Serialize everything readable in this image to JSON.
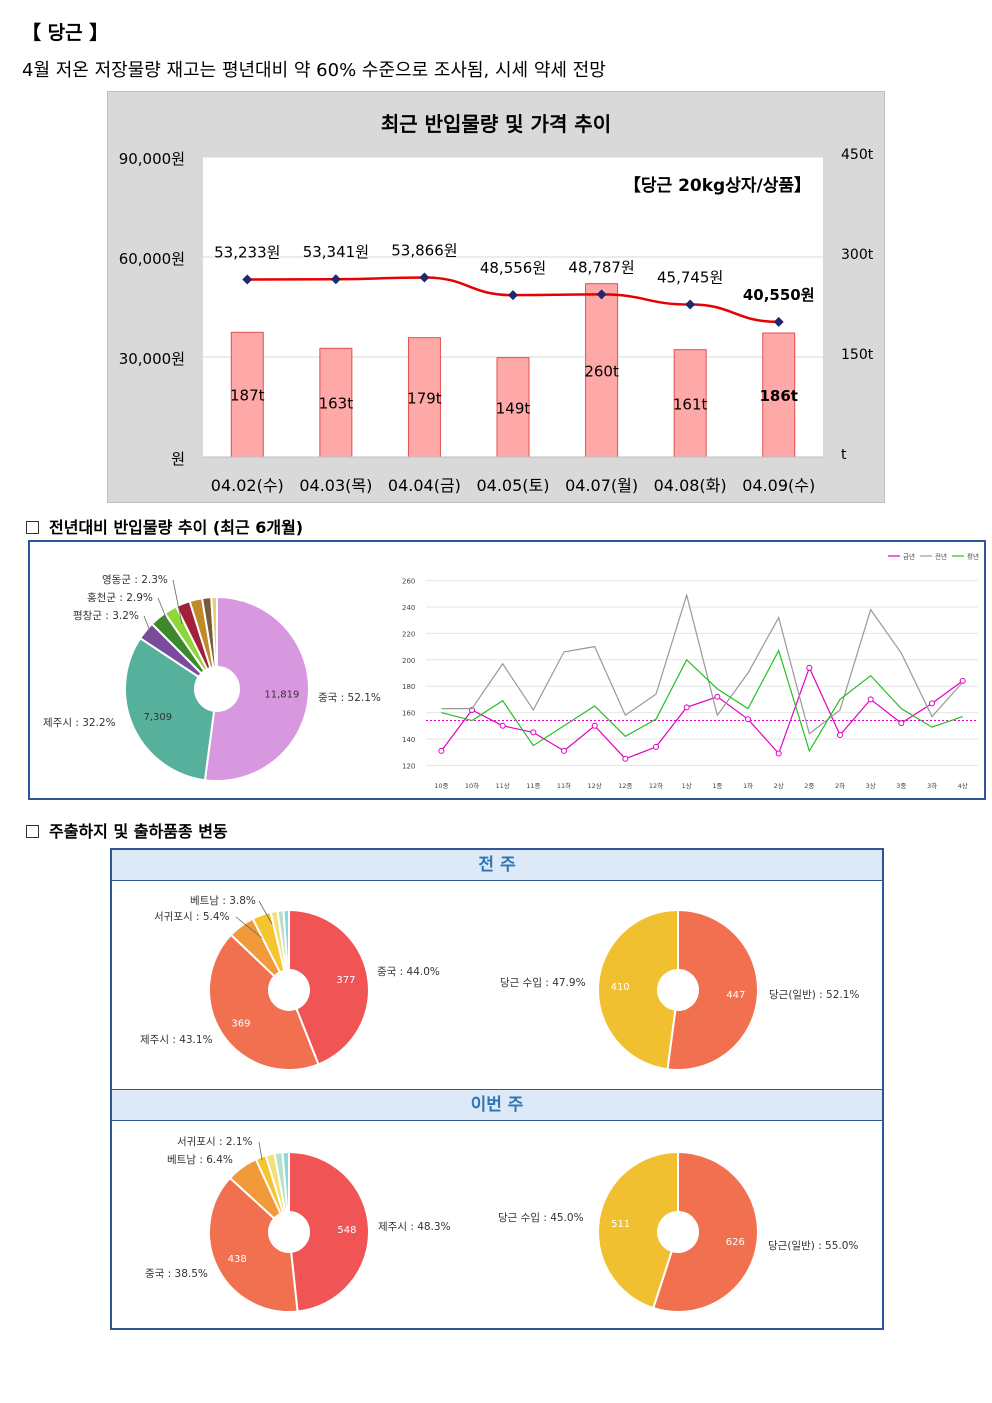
{
  "header": {
    "title": "【 당근 】",
    "subtitle": "4월 저온 저장물량 재고는 평년대비 약 60% 수준으로 조사됨, 시세 약세 전망"
  },
  "chart_data": [
    {
      "type": "bar",
      "title": "최근 반입물량 및 가격 추이",
      "annotation": "【당근 20kg상자/상품】",
      "categories": [
        "04.02(수)",
        "04.03(목)",
        "04.04(금)",
        "04.05(토)",
        "04.07(월)",
        "04.08(화)",
        "04.09(수)"
      ],
      "series": [
        {
          "name": "반입물량",
          "kind": "bar",
          "axis": "right",
          "color": "#ffa8a8",
          "values": [
            187,
            163,
            179,
            149,
            260,
            161,
            186
          ],
          "labels": [
            "187t",
            "163t",
            "179t",
            "149t",
            "260t",
            "161t",
            "186t"
          ]
        },
        {
          "name": "가격",
          "kind": "line",
          "axis": "left",
          "color": "#e60000",
          "values": [
            53233,
            53341,
            53866,
            48556,
            48787,
            45745,
            40550
          ],
          "labels": [
            "53,233원",
            "53,341원",
            "53,866원",
            "48,556원",
            "48,787원",
            "45,745원",
            "40,550원"
          ]
        }
      ],
      "ylim_left": [
        0,
        90000
      ],
      "ylim_right": [
        0,
        450
      ],
      "left_ticks": [
        "원",
        "30,000원",
        "60,000원",
        "90,000원"
      ],
      "right_ticks": [
        "t",
        "150t",
        "300t",
        "450t"
      ]
    },
    {
      "type": "pie",
      "slices": [
        {
          "label": "중국 : 52.1%",
          "value": 52.1,
          "count": "11,819",
          "color": "#d898e0"
        },
        {
          "label": "제주시 : 32.2%",
          "value": 32.2,
          "count": "7,309",
          "color": "#56b09c"
        },
        {
          "label": "평창군 : 3.2%",
          "value": 3.2,
          "color": "#7a4a9c"
        },
        {
          "label": "홍천군 : 2.9%",
          "value": 2.9,
          "color": "#3c8a2c"
        },
        {
          "label": "영동군 : 2.3%",
          "value": 2.3,
          "color": "#8fd63a"
        },
        {
          "label": "",
          "value": 2.5,
          "color": "#a3203a"
        },
        {
          "label": "",
          "value": 2.2,
          "color": "#c08a28"
        },
        {
          "label": "",
          "value": 1.6,
          "color": "#7a5a3a"
        },
        {
          "label": "",
          "value": 1.0,
          "color": "#e8d070"
        }
      ]
    },
    {
      "type": "line",
      "legend": [
        "금년",
        "전년",
        "평년"
      ],
      "x": [
        "10중",
        "10하",
        "11상",
        "11중",
        "11하",
        "12상",
        "12중",
        "12하",
        "1상",
        "1중",
        "1하",
        "2상",
        "2중",
        "2하",
        "3상",
        "3중",
        "3하",
        "4상"
      ],
      "yticks": [
        "120",
        "140",
        "160",
        "180",
        "200",
        "220",
        "240",
        "260"
      ],
      "ylim": [
        115,
        265
      ],
      "series": [
        {
          "name": "금년",
          "color": "#e000c0",
          "values": [
            131,
            162,
            150,
            145,
            131,
            150,
            125,
            134,
            164,
            172,
            155,
            129,
            194,
            143,
            170,
            152,
            167,
            184
          ]
        },
        {
          "name": "전년",
          "color": "#999999",
          "values": [
            163,
            163,
            197,
            162,
            206,
            210,
            158,
            174,
            249,
            158,
            190,
            232,
            144,
            162,
            238,
            205,
            157,
            183
          ]
        },
        {
          "name": "평년",
          "color": "#22c022",
          "values": [
            160,
            154,
            169,
            135,
            150,
            165,
            142,
            155,
            200,
            178,
            163,
            207,
            131,
            170,
            188,
            163,
            149,
            157
          ]
        }
      ],
      "reference": 154
    },
    {
      "type": "pie",
      "slices": [
        {
          "label": "중국 : 44.0%",
          "value": 44.0,
          "count": "377",
          "color": "#f05454"
        },
        {
          "label": "제주시 : 43.1%",
          "value": 43.1,
          "count": "369",
          "color": "#f07050"
        },
        {
          "label": "서귀포시 : 5.4%",
          "value": 5.4,
          "color": "#f09a3a"
        },
        {
          "label": "베트남 : 3.8%",
          "value": 3.8,
          "color": "#f6c430"
        },
        {
          "label": "",
          "value": 1.4,
          "color": "#f3e07a"
        },
        {
          "label": "",
          "value": 1.2,
          "color": "#b8e0c8"
        },
        {
          "label": "",
          "value": 1.1,
          "color": "#8ed6dc"
        }
      ]
    },
    {
      "type": "pie",
      "slices": [
        {
          "label": "당근(일반) : 52.1%",
          "value": 52.1,
          "count": "447",
          "color": "#f07050"
        },
        {
          "label": "당근 수입 : 47.9%",
          "value": 47.9,
          "count": "410",
          "color": "#f0c030"
        }
      ]
    },
    {
      "type": "pie",
      "slices": [
        {
          "label": "제주시 : 48.3%",
          "value": 48.3,
          "count": "548",
          "color": "#f05454"
        },
        {
          "label": "중국 : 38.5%",
          "value": 38.5,
          "count": "438",
          "color": "#f07050"
        },
        {
          "label": "베트남 : 6.4%",
          "value": 6.4,
          "color": "#f09a3a"
        },
        {
          "label": "서귀포시 : 2.1%",
          "value": 2.1,
          "color": "#f6c430"
        },
        {
          "label": "",
          "value": 1.8,
          "color": "#f3e07a"
        },
        {
          "label": "",
          "value": 1.6,
          "color": "#b8e0c8"
        },
        {
          "label": "",
          "value": 1.3,
          "color": "#8ed6dc"
        }
      ]
    },
    {
      "type": "pie",
      "slices": [
        {
          "label": "당근(일반) : 55.0%",
          "value": 55.0,
          "count": "626",
          "color": "#f07050"
        },
        {
          "label": "당근 수입 : 45.0%",
          "value": 45.0,
          "count": "511",
          "color": "#f0c030"
        }
      ]
    }
  ],
  "section2": {
    "title": "전년대비 반입물량 추이 (최근 6개월)"
  },
  "section3": {
    "title": "주출하지 및 출하품종 변동",
    "prev_week": "전 주",
    "this_week": "이번 주"
  }
}
